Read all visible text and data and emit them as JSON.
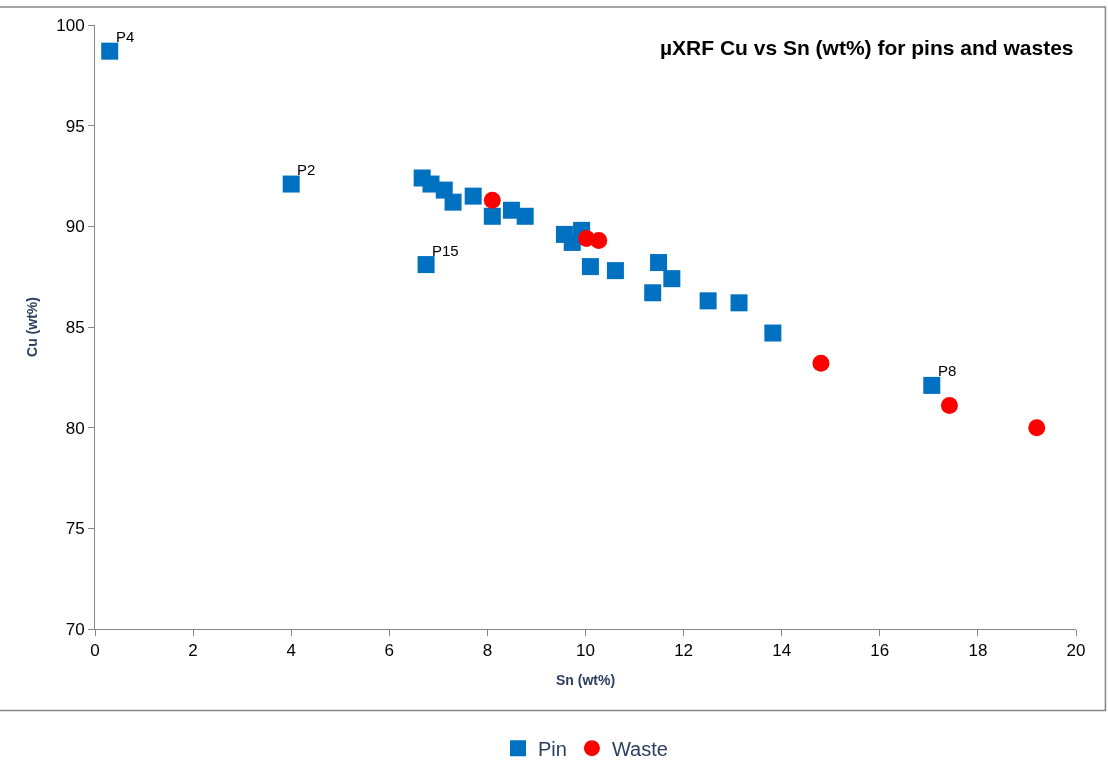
{
  "chart_data": {
    "type": "scatter",
    "title": "µXRF Cu vs Sn (wt%) for pins and wastes",
    "xlabel": "Sn (wt%)",
    "ylabel": "Cu (wt%)",
    "xlim": [
      0,
      20
    ],
    "xticks": [
      0,
      2,
      4,
      6,
      8,
      10,
      12,
      14,
      16,
      18,
      20
    ],
    "ylim": [
      70,
      100
    ],
    "yticks": [
      70,
      75,
      80,
      85,
      90,
      95,
      100
    ],
    "grid": false,
    "legend": "bottom",
    "series": [
      {
        "name": "Pin",
        "color": "#0070c0",
        "marker": "square",
        "x": [
          0.3,
          4.0,
          6.67,
          6.85,
          7.12,
          7.3,
          7.71,
          8.1,
          8.49,
          8.77,
          9.57,
          9.92,
          9.73,
          10.1,
          10.61,
          11.49,
          11.76,
          11.37,
          12.5,
          13.13,
          13.82,
          17.06,
          6.75
        ],
        "values": [
          98.7,
          92.1,
          92.4,
          92.1,
          91.8,
          91.2,
          91.5,
          90.5,
          90.8,
          90.5,
          89.6,
          89.8,
          89.2,
          88.0,
          87.8,
          88.2,
          87.4,
          86.7,
          86.3,
          86.2,
          84.7,
          82.1,
          88.1
        ]
      },
      {
        "name": "Waste",
        "color": "#ff0000",
        "marker": "circle",
        "x": [
          8.1,
          10.02,
          10.27,
          14.8,
          17.42,
          19.2
        ],
        "values": [
          91.3,
          89.4,
          89.3,
          83.2,
          81.1,
          80.0
        ]
      }
    ],
    "annotations": [
      {
        "text": "P4",
        "x": 0.3,
        "y": 98.7
      },
      {
        "text": "P2",
        "x": 4.0,
        "y": 92.1
      },
      {
        "text": "P15",
        "x": 6.75,
        "y": 88.1
      },
      {
        "text": "P8",
        "x": 17.06,
        "y": 82.1
      }
    ]
  }
}
